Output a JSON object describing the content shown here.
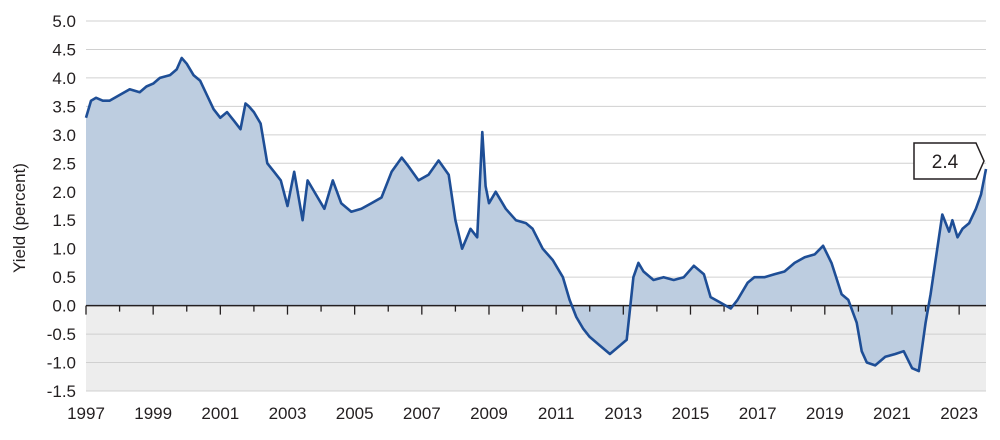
{
  "chart_data": {
    "type": "area",
    "title": "",
    "xlabel": "",
    "ylabel": "Yield (percent)",
    "xlim": [
      1997,
      2023.8
    ],
    "ylim": [
      -1.5,
      5.0
    ],
    "grid": "horizontal",
    "x_ticks": [
      "1997",
      "1999",
      "2001",
      "2003",
      "2005",
      "2007",
      "2009",
      "2011",
      "2013",
      "2015",
      "2017",
      "2019",
      "2021",
      "2023"
    ],
    "y_ticks": [
      "5.0",
      "4.5",
      "4.0",
      "3.5",
      "3.0",
      "2.5",
      "2.0",
      "1.5",
      "1.0",
      "0.5",
      "0.0",
      "-0.5",
      "-1.0",
      "-1.5"
    ],
    "series": [
      {
        "x": [
          1997.0,
          1997.15,
          1997.3,
          1997.5,
          1997.7,
          1998.0,
          1998.3,
          1998.6,
          1998.8,
          1999.0,
          1999.2,
          1999.5,
          1999.7,
          1999.85,
          2000.0,
          2000.2,
          2000.4,
          2000.6,
          2000.8,
          2001.0,
          2001.2,
          2001.4,
          2001.6,
          2001.75,
          2001.85,
          2002.0,
          2002.2,
          2002.4,
          2002.6,
          2002.8,
          2003.0,
          2003.2,
          2003.45,
          2003.6,
          2003.9,
          2004.1,
          2004.35,
          2004.6,
          2004.9,
          2005.2,
          2005.5,
          2005.8,
          2006.1,
          2006.4,
          2006.6,
          2006.9,
          2007.2,
          2007.5,
          2007.8,
          2008.0,
          2008.2,
          2008.45,
          2008.65,
          2008.8,
          2008.9,
          2009.0,
          2009.2,
          2009.5,
          2009.8,
          2010.1,
          2010.3,
          2010.6,
          2010.9,
          2011.2,
          2011.4,
          2011.6,
          2011.8,
          2012.0,
          2012.3,
          2012.6,
          2012.9,
          2013.1,
          2013.3,
          2013.45,
          2013.6,
          2013.9,
          2014.2,
          2014.5,
          2014.8,
          2015.1,
          2015.4,
          2015.6,
          2015.9,
          2016.2,
          2016.4,
          2016.7,
          2016.9,
          2017.2,
          2017.5,
          2017.8,
          2018.1,
          2018.4,
          2018.7,
          2018.95,
          2019.2,
          2019.5,
          2019.7,
          2019.95,
          2020.1,
          2020.25,
          2020.5,
          2020.8,
          2021.1,
          2021.35,
          2021.6,
          2021.8,
          2022.0,
          2022.15,
          2022.3,
          2022.5,
          2022.7,
          2022.8,
          2022.95,
          2023.1,
          2023.3,
          2023.5,
          2023.65,
          2023.8
        ],
        "values": [
          3.3,
          3.6,
          3.65,
          3.6,
          3.6,
          3.7,
          3.8,
          3.75,
          3.85,
          3.9,
          4.0,
          4.05,
          4.15,
          4.35,
          4.25,
          4.05,
          3.95,
          3.7,
          3.45,
          3.3,
          3.4,
          3.25,
          3.1,
          3.55,
          3.5,
          3.4,
          3.2,
          2.5,
          2.35,
          2.2,
          1.75,
          2.35,
          1.5,
          2.2,
          1.9,
          1.7,
          2.2,
          1.8,
          1.65,
          1.7,
          1.8,
          1.9,
          2.35,
          2.6,
          2.45,
          2.2,
          2.3,
          2.55,
          2.3,
          1.5,
          1.0,
          1.35,
          1.2,
          3.05,
          2.1,
          1.8,
          2.0,
          1.7,
          1.5,
          1.45,
          1.35,
          1.0,
          0.8,
          0.5,
          0.1,
          -0.2,
          -0.4,
          -0.55,
          -0.7,
          -0.85,
          -0.7,
          -0.6,
          0.5,
          0.75,
          0.6,
          0.45,
          0.5,
          0.45,
          0.5,
          0.7,
          0.55,
          0.15,
          0.05,
          -0.05,
          0.1,
          0.4,
          0.5,
          0.5,
          0.55,
          0.6,
          0.75,
          0.85,
          0.9,
          1.05,
          0.75,
          0.2,
          0.1,
          -0.3,
          -0.8,
          -1.0,
          -1.05,
          -0.9,
          -0.85,
          -0.8,
          -1.1,
          -1.15,
          -0.3,
          0.2,
          0.8,
          1.6,
          1.3,
          1.5,
          1.2,
          1.35,
          1.45,
          1.7,
          1.95,
          2.4
        ]
      }
    ],
    "annotations": [
      {
        "text": "2.4",
        "x": 2023.8,
        "y": 2.4
      }
    ],
    "colors": {
      "line": "#1e4e96",
      "fill": "#bdcde0",
      "neg_region": "#ededed",
      "grid": "#d0d0d0",
      "axis": "#231f20"
    }
  }
}
